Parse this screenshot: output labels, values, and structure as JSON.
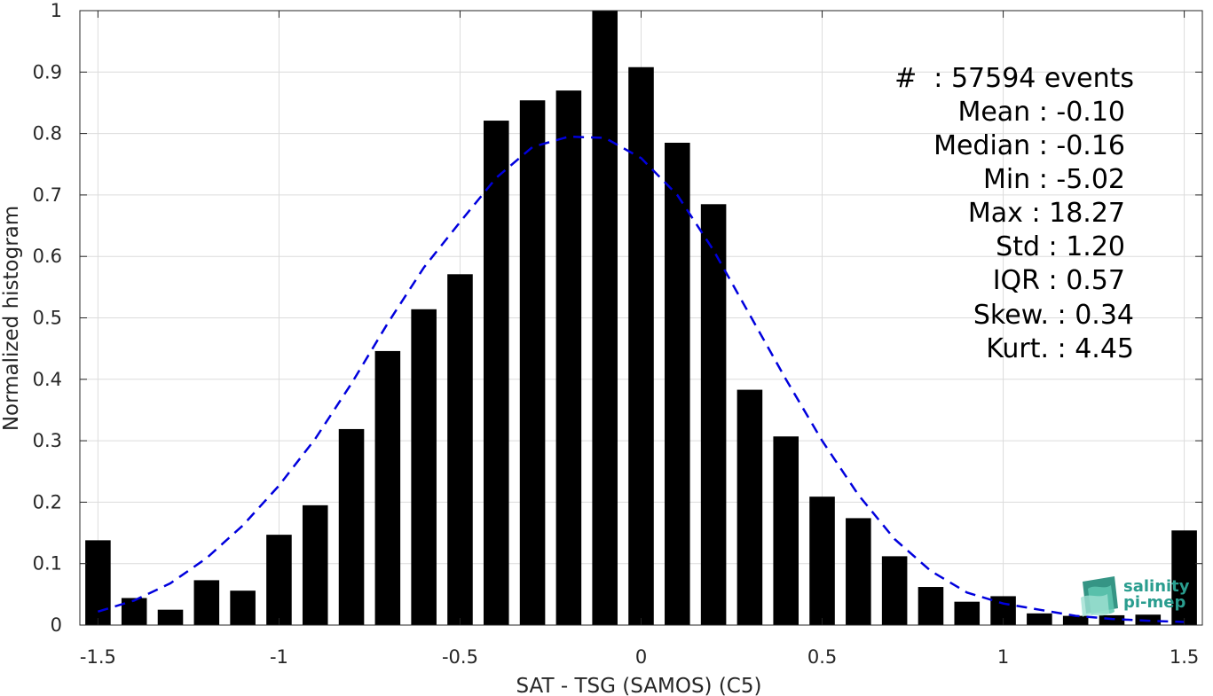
{
  "chart_data": {
    "type": "bar",
    "xlabel": "SAT - TSG (SAMOS) (C5)",
    "ylabel": "Normalized histogram",
    "xlim": [
      -1.55,
      1.55
    ],
    "ylim": [
      0,
      1
    ],
    "grid": true,
    "xticks": [
      -1.5,
      -1,
      -0.5,
      0,
      0.5,
      1,
      1.5
    ],
    "xtick_labels": [
      "-1.5",
      "-1",
      "-0.5",
      "0",
      "0.5",
      "1",
      "1.5"
    ],
    "yticks": [
      0,
      0.1,
      0.2,
      0.3,
      0.4,
      0.5,
      0.6,
      0.7,
      0.8,
      0.9,
      1
    ],
    "ytick_labels": [
      "0",
      "0.1",
      "0.2",
      "0.3",
      "0.4",
      "0.5",
      "0.6",
      "0.7",
      "0.8",
      "0.9",
      "1"
    ],
    "bar_width": 0.07,
    "x": [
      -1.5,
      -1.4,
      -1.3,
      -1.2,
      -1.1,
      -1.0,
      -0.9,
      -0.8,
      -0.7,
      -0.6,
      -0.5,
      -0.4,
      -0.3,
      -0.2,
      -0.1,
      0.0,
      0.1,
      0.2,
      0.3,
      0.4,
      0.5,
      0.6,
      0.7,
      0.8,
      0.9,
      1.0,
      1.1,
      1.2,
      1.3,
      1.4,
      1.5
    ],
    "values": [
      0.138,
      0.044,
      0.025,
      0.073,
      0.056,
      0.147,
      0.195,
      0.319,
      0.446,
      0.514,
      0.571,
      0.821,
      0.854,
      0.87,
      1.0,
      0.908,
      0.785,
      0.685,
      0.383,
      0.307,
      0.209,
      0.174,
      0.112,
      0.062,
      0.038,
      0.047,
      0.019,
      0.015,
      0.016,
      0.017,
      0.154
    ],
    "bar_color": "#000000",
    "fit_curve": {
      "style": "dashed",
      "color": "#0000dd",
      "x": [
        -1.5,
        -1.4,
        -1.3,
        -1.2,
        -1.1,
        -1.0,
        -0.9,
        -0.8,
        -0.7,
        -0.6,
        -0.5,
        -0.4,
        -0.3,
        -0.2,
        -0.1,
        0.0,
        0.1,
        0.2,
        0.3,
        0.4,
        0.5,
        0.6,
        0.7,
        0.8,
        0.9,
        1.0,
        1.1,
        1.2,
        1.3,
        1.4,
        1.5
      ],
      "y": [
        0.022,
        0.04,
        0.068,
        0.109,
        0.162,
        0.227,
        0.303,
        0.393,
        0.491,
        0.582,
        0.656,
        0.728,
        0.778,
        0.795,
        0.793,
        0.76,
        0.7,
        0.61,
        0.505,
        0.4,
        0.3,
        0.212,
        0.14,
        0.088,
        0.053,
        0.035,
        0.025,
        0.015,
        0.01,
        0.007,
        0.005
      ]
    }
  },
  "stats": {
    "events": "#  : 57594 events",
    "mean": "Mean : -0.10",
    "median": "Median : -0.16",
    "min": "Min : -5.02",
    "max": "Max : 18.27",
    "std": "Std : 1.20",
    "iqr": "IQR : 0.57",
    "skew": "Skew. : 0.34",
    "kurt": "Kurt. : 4.45"
  },
  "logo": {
    "line1": "salinity",
    "line2": "pi-mep",
    "color": "#2a9d8f"
  }
}
